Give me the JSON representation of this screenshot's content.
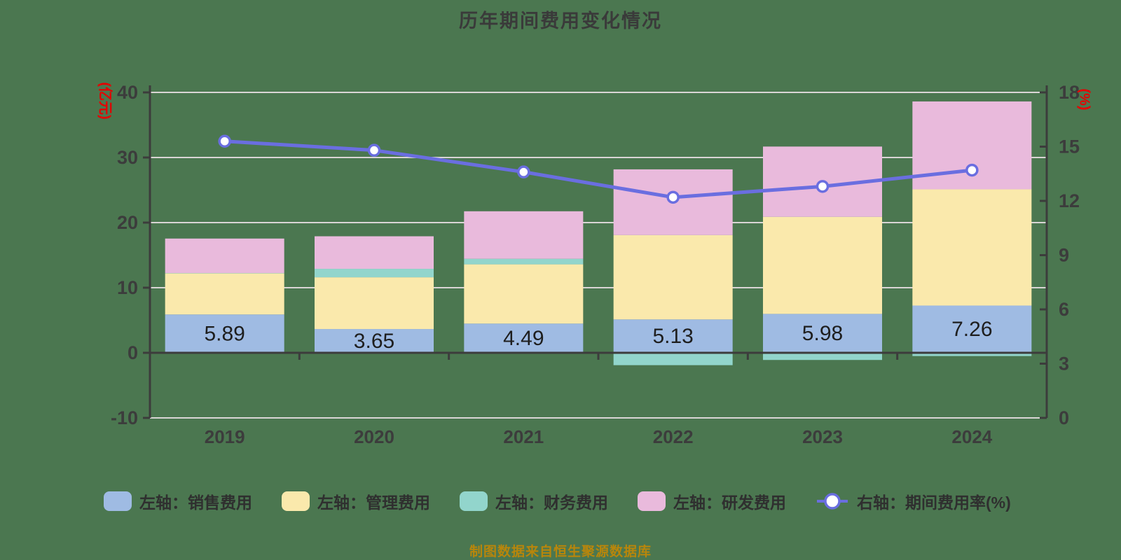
{
  "title": {
    "text": "历年期间费用变化情况"
  },
  "footer": {
    "text": "制图数据来自恒生聚源数据库"
  },
  "colors": {
    "background": "#4B7750",
    "axis": "#3C3C3C",
    "grid": "#D9D5D5",
    "tick_label": "#3C3C3C",
    "unit_label": "#E60000",
    "bar_label": "#1E1E1E",
    "legend_text": "#2F2F2F",
    "footer_text": "#B8860B",
    "line_series": "#6A6EE0",
    "marker_fill": "#FFFFFF"
  },
  "left_axis": {
    "unit": "(亿元)",
    "min": -10,
    "max": 40,
    "tick_step": 10
  },
  "right_axis": {
    "unit": "(%)",
    "min": 0,
    "max": 18,
    "tick_step": 3
  },
  "chart_data": {
    "type": "bar",
    "subtype": "stacked-bar-with-line",
    "title": "历年期间费用变化情况",
    "categories": [
      "2019",
      "2020",
      "2021",
      "2022",
      "2023",
      "2024"
    ],
    "series": [
      {
        "key": "sales",
        "name": "左轴：销售费用",
        "type": "bar",
        "axis": "left",
        "color": "#9FBBE3",
        "values": [
          5.89,
          3.65,
          4.49,
          5.13,
          5.98,
          7.26
        ],
        "show_labels": true
      },
      {
        "key": "admin",
        "name": "左轴：管理费用",
        "type": "bar",
        "axis": "left",
        "color": "#FAE9AC",
        "values": [
          6.31,
          7.95,
          9.1,
          12.95,
          14.9,
          17.85
        ]
      },
      {
        "key": "finance",
        "name": "左轴：财务费用",
        "type": "bar",
        "axis": "left",
        "color": "#92D5CC",
        "values": [
          0.05,
          1.3,
          0.85,
          -1.9,
          -1.1,
          -0.5
        ]
      },
      {
        "key": "rd",
        "name": "左轴：研发费用",
        "type": "bar",
        "axis": "left",
        "color": "#E9BADC",
        "values": [
          5.3,
          5.0,
          7.3,
          10.1,
          10.8,
          13.5
        ]
      },
      {
        "key": "rate",
        "name": "右轴：期间费用率(%)",
        "type": "line",
        "axis": "right",
        "color": "#6A6EE0",
        "values": [
          15.3,
          14.8,
          13.6,
          12.2,
          12.8,
          13.7
        ]
      }
    ],
    "bar_value_labels": [
      "5.89",
      "3.65",
      "4.49",
      "5.13",
      "5.98",
      "7.26"
    ],
    "xlabel": "",
    "ylabel_left": "(亿元)",
    "ylabel_right": "(%)",
    "left_ylim": [
      -10,
      40
    ],
    "right_ylim": [
      0,
      18
    ],
    "left_ticks": [
      40,
      30,
      20,
      10,
      0,
      -10
    ],
    "right_ticks": [
      18,
      15,
      12,
      9,
      6,
      3,
      0
    ],
    "grid": true,
    "legend_position": "bottom"
  },
  "legend": {
    "items": [
      {
        "key": "sales",
        "label": "左轴：销售费用",
        "swatch": "bar",
        "color": "#9FBBE3"
      },
      {
        "key": "admin",
        "label": "左轴：管理费用",
        "swatch": "bar",
        "color": "#FAE9AC"
      },
      {
        "key": "finance",
        "label": "左轴：财务费用",
        "swatch": "bar",
        "color": "#92D5CC"
      },
      {
        "key": "rd",
        "label": "左轴：研发费用",
        "swatch": "bar",
        "color": "#E9BADC"
      },
      {
        "key": "rate",
        "label": "右轴：期间费用率(%)",
        "swatch": "line",
        "color": "#6A6EE0"
      }
    ]
  }
}
